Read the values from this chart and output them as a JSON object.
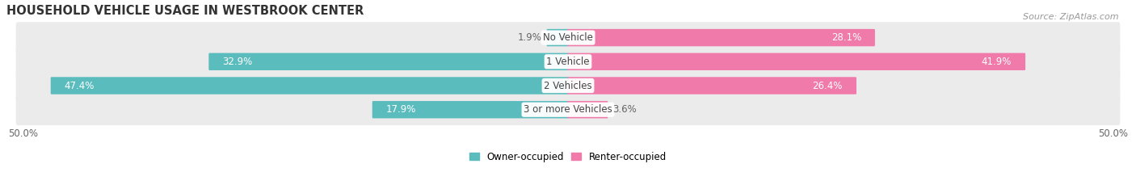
{
  "title": "HOUSEHOLD VEHICLE USAGE IN WESTBROOK CENTER",
  "source": "Source: ZipAtlas.com",
  "categories": [
    "No Vehicle",
    "1 Vehicle",
    "2 Vehicles",
    "3 or more Vehicles"
  ],
  "owner_values": [
    1.9,
    32.9,
    47.4,
    17.9
  ],
  "renter_values": [
    28.1,
    41.9,
    26.4,
    3.6
  ],
  "owner_color": "#5bbcbe",
  "renter_color": "#f07aaa",
  "bar_bg_color": "#ebebeb",
  "bar_bg_color2": "#f5f5f5",
  "axis_limit": 50.0,
  "legend_owner": "Owner-occupied",
  "legend_renter": "Renter-occupied",
  "title_fontsize": 10.5,
  "label_fontsize": 8.5,
  "category_fontsize": 8.5,
  "source_fontsize": 8,
  "tick_fontsize": 8.5,
  "label_color_inside": "#ffffff",
  "label_color_outside": "#666666"
}
